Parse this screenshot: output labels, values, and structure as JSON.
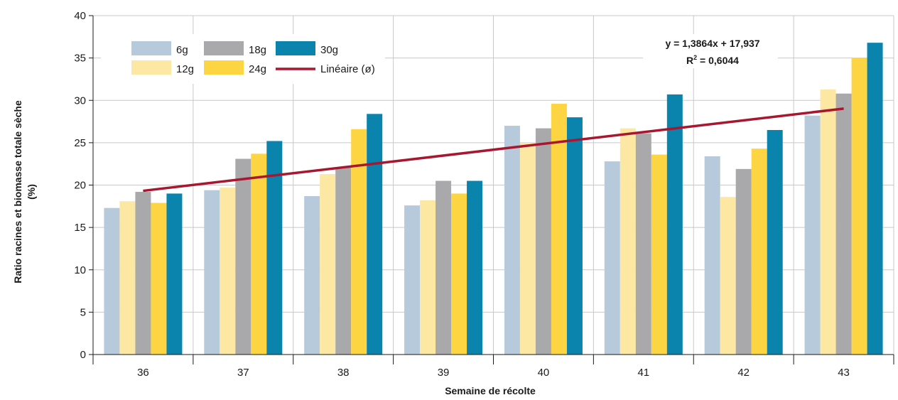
{
  "chart_data": {
    "type": "bar",
    "xlabel": "Semaine de récolte",
    "ylabel_line1": "Ratio racines et biomasse totale sèche",
    "ylabel_line2": "(%)",
    "ylim": [
      0,
      40
    ],
    "yticks": [
      0,
      5,
      10,
      15,
      20,
      25,
      30,
      35,
      40
    ],
    "grid": true,
    "legend_position": "top-left",
    "categories": [
      "36",
      "37",
      "38",
      "39",
      "40",
      "41",
      "42",
      "43"
    ],
    "series": [
      {
        "name": "6g",
        "color": "#b6cadb",
        "values": [
          17.3,
          19.4,
          18.7,
          17.6,
          27.0,
          22.8,
          23.4,
          28.2
        ]
      },
      {
        "name": "12g",
        "color": "#fde8a3",
        "values": [
          18.1,
          19.7,
          21.3,
          18.2,
          25.0,
          26.7,
          18.6,
          31.3
        ]
      },
      {
        "name": "18g",
        "color": "#a9a9ab",
        "values": [
          19.2,
          23.1,
          22.1,
          20.5,
          26.7,
          26.1,
          21.9,
          30.8
        ]
      },
      {
        "name": "24g",
        "color": "#fdd543",
        "values": [
          17.9,
          23.7,
          26.6,
          19.0,
          29.6,
          23.6,
          24.3,
          35.0
        ]
      },
      {
        "name": "30g",
        "color": "#0a84ad",
        "values": [
          19.0,
          25.2,
          28.4,
          20.5,
          28.0,
          30.7,
          26.5,
          36.8
        ]
      }
    ],
    "trendline": {
      "name": "Linéaire (ø)",
      "color": "#a8172f",
      "slope": 1.3864,
      "intercept": 17.937,
      "equation": "y = 1,3864x + 17,937",
      "r2_label": "R",
      "r2_sup": "2",
      "r2_value": " = 0,6044"
    }
  }
}
